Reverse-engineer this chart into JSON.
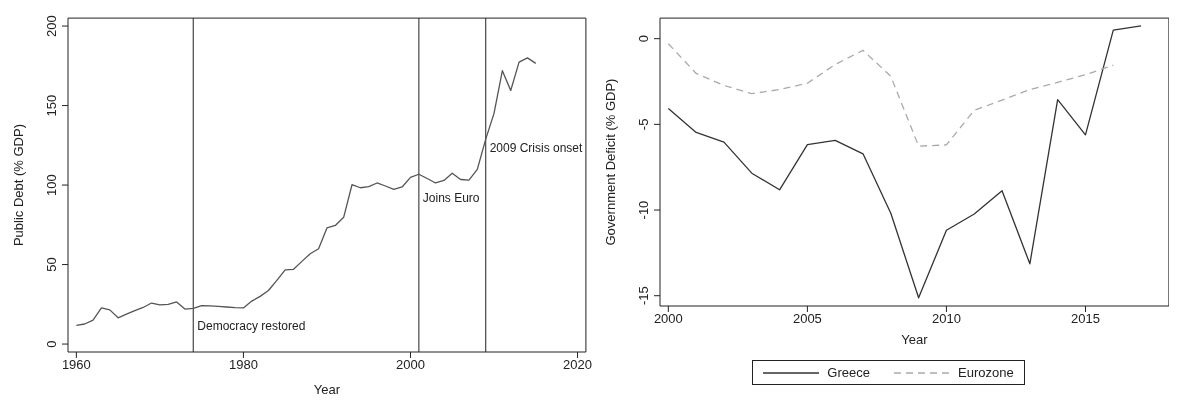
{
  "chart_data": [
    {
      "type": "line",
      "xlabel": "Year",
      "ylabel": "Public Debt (% GDP)",
      "color": "#555555",
      "line_style": "solid",
      "x": [
        1960,
        1961,
        1962,
        1963,
        1964,
        1965,
        1966,
        1967,
        1968,
        1969,
        1970,
        1971,
        1972,
        1973,
        1974,
        1975,
        1976,
        1977,
        1978,
        1979,
        1980,
        1981,
        1982,
        1983,
        1984,
        1985,
        1986,
        1987,
        1988,
        1989,
        1990,
        1991,
        1992,
        1993,
        1994,
        1995,
        1996,
        1997,
        1998,
        1999,
        2000,
        2001,
        2002,
        2003,
        2004,
        2005,
        2006,
        2007,
        2008,
        2009,
        2010,
        2011,
        2012,
        2013,
        2014,
        2015
      ],
      "values": [
        11.8,
        12.6,
        15,
        22.7,
        21.5,
        16.5,
        18.8,
        21,
        23,
        25.8,
        24.6,
        25,
        26.5,
        22,
        22.5,
        24.2,
        24,
        23.7,
        23.3,
        22.9,
        22.7,
        27,
        30,
        33.7,
        40,
        46.7,
        47,
        52,
        56.8,
        59.9,
        73,
        74.6,
        79.7,
        100.2,
        98.3,
        99,
        101.3,
        99.4,
        97.3,
        98.8,
        104.8,
        106.8,
        104.1,
        101.3,
        102.9,
        107.4,
        103.5,
        103.1,
        109.9,
        128.7,
        145.1,
        171.9,
        159.5,
        177.3,
        180,
        176.5
      ],
      "xlim": [
        1959,
        2021
      ],
      "xticks": [
        1960,
        1980,
        2000,
        2020
      ],
      "ylim": [
        -5,
        205
      ],
      "yticks": [
        0,
        50,
        100,
        150,
        200
      ],
      "ref_lines": [
        {
          "axis": "x",
          "value": 1974,
          "label": "Democracy restored",
          "color": "#555555"
        },
        {
          "axis": "x",
          "value": 2001,
          "label": "Joins Euro",
          "color": "#555555"
        },
        {
          "axis": "x",
          "value": 2009,
          "label": "2009 Crisis onset",
          "color": "#555555"
        }
      ]
    },
    {
      "type": "line",
      "xlabel": "Year",
      "ylabel": "Government Deficit (% GDP)",
      "legend": "bottom",
      "x": [
        2000,
        2001,
        2002,
        2003,
        2004,
        2005,
        2006,
        2007,
        2008,
        2009,
        2010,
        2011,
        2012,
        2013,
        2014,
        2015,
        2016,
        2017
      ],
      "series": [
        {
          "name": "Greece",
          "color": "#333333",
          "line_style": "solid",
          "values": [
            -4.08,
            -5.47,
            -6.04,
            -7.85,
            -8.82,
            -6.18,
            -5.94,
            -6.72,
            -10.19,
            -15.12,
            -11.18,
            -10.23,
            -8.87,
            -13.14,
            -3.56,
            -5.61,
            0.5,
            0.75
          ]
        },
        {
          "name": "Eurozone",
          "color": "#aaaaaa",
          "line_style": "dashed",
          "values": [
            -0.3,
            -2.03,
            -2.73,
            -3.21,
            -2.97,
            -2.6,
            -1.51,
            -0.68,
            -2.2,
            -6.27,
            -6.2,
            -4.18,
            -3.59,
            -2.97,
            -2.55,
            -2.1,
            -1.55,
            null
          ]
        }
      ],
      "xlim": [
        1999.7,
        2018
      ],
      "xticks": [
        2000,
        2005,
        2010,
        2015
      ],
      "ylim": [
        -15.6,
        1.2
      ],
      "yticks": [
        0,
        -5,
        -10,
        -15
      ]
    }
  ]
}
